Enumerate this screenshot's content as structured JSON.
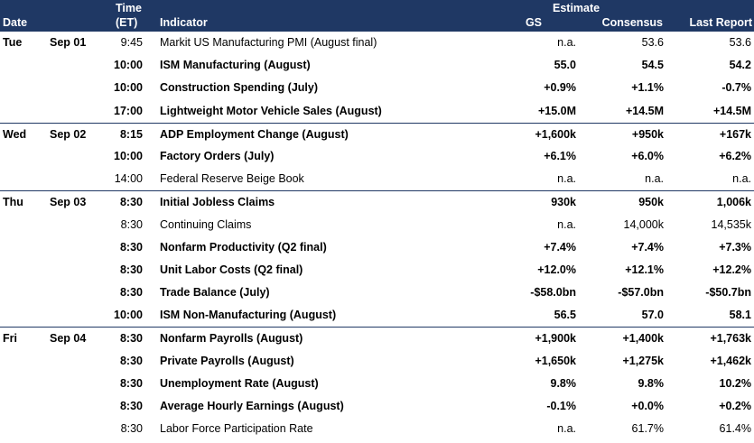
{
  "header": {
    "date": "Date",
    "time_line1": "Time",
    "time_line2": "(ET)",
    "indicator": "Indicator",
    "estimate": "Estimate",
    "gs": "GS",
    "consensus": "Consensus",
    "last_report": "Last Report"
  },
  "rows": [
    {
      "day": "Tue",
      "date": "Sep 01",
      "time": "9:45",
      "indicator": "Markit US Manufacturing PMI (August final)",
      "gs": "n.a.",
      "consensus": "53.6",
      "last": "53.6",
      "bold": false
    },
    {
      "day": "",
      "date": "",
      "time": "10:00",
      "indicator": "ISM Manufacturing (August)",
      "gs": "55.0",
      "consensus": "54.5",
      "last": "54.2",
      "bold": true
    },
    {
      "day": "",
      "date": "",
      "time": "10:00",
      "indicator": "Construction Spending (July)",
      "gs": "+0.9%",
      "consensus": "+1.1%",
      "last": "-0.7%",
      "bold": true
    },
    {
      "day": "",
      "date": "",
      "time": "17:00",
      "indicator": "Lightweight Motor Vehicle Sales (August)",
      "gs": "+15.0M",
      "consensus": "+14.5M",
      "last": "+14.5M",
      "bold": true
    },
    {
      "day": "Wed",
      "date": "Sep 02",
      "time": "8:15",
      "indicator": "ADP Employment Change (August)",
      "gs": "+1,600k",
      "consensus": "+950k",
      "last": "+167k",
      "bold": true
    },
    {
      "day": "",
      "date": "",
      "time": "10:00",
      "indicator": "Factory Orders (July)",
      "gs": "+6.1%",
      "consensus": "+6.0%",
      "last": "+6.2%",
      "bold": true
    },
    {
      "day": "",
      "date": "",
      "time": "14:00",
      "indicator": "Federal Reserve Beige Book",
      "gs": "n.a.",
      "consensus": "n.a.",
      "last": "n.a.",
      "bold": false
    },
    {
      "day": "Thu",
      "date": "Sep 03",
      "time": "8:30",
      "indicator": "Initial Jobless Claims",
      "gs": "930k",
      "consensus": "950k",
      "last": "1,006k",
      "bold": true
    },
    {
      "day": "",
      "date": "",
      "time": "8:30",
      "indicator": "Continuing Claims",
      "gs": "n.a.",
      "consensus": "14,000k",
      "last": "14,535k",
      "bold": false
    },
    {
      "day": "",
      "date": "",
      "time": "8:30",
      "indicator": "Nonfarm Productivity (Q2 final)",
      "gs": "+7.4%",
      "consensus": "+7.4%",
      "last": "+7.3%",
      "bold": true
    },
    {
      "day": "",
      "date": "",
      "time": "8:30",
      "indicator": "Unit Labor Costs (Q2 final)",
      "gs": "+12.0%",
      "consensus": "+12.1%",
      "last": "+12.2%",
      "bold": true
    },
    {
      "day": "",
      "date": "",
      "time": "8:30",
      "indicator": "Trade Balance (July)",
      "gs": "-$58.0bn",
      "consensus": "-$57.0bn",
      "last": "-$50.7bn",
      "bold": true
    },
    {
      "day": "",
      "date": "",
      "time": "10:00",
      "indicator": "ISM Non-Manufacturing (August)",
      "gs": "56.5",
      "consensus": "57.0",
      "last": "58.1",
      "bold": true
    },
    {
      "day": "Fri",
      "date": "Sep 04",
      "time": "8:30",
      "indicator": "Nonfarm Payrolls (August)",
      "gs": "+1,900k",
      "consensus": "+1,400k",
      "last": "+1,763k",
      "bold": true
    },
    {
      "day": "",
      "date": "",
      "time": "8:30",
      "indicator": "Private Payrolls (August)",
      "gs": "+1,650k",
      "consensus": "+1,275k",
      "last": "+1,462k",
      "bold": true
    },
    {
      "day": "",
      "date": "",
      "time": "8:30",
      "indicator": "Unemployment Rate (August)",
      "gs": "9.8%",
      "consensus": "9.8%",
      "last": "10.2%",
      "bold": true
    },
    {
      "day": "",
      "date": "",
      "time": "8:30",
      "indicator": "Average Hourly Earnings (August)",
      "gs": "-0.1%",
      "consensus": "+0.0%",
      "last": "+0.2%",
      "bold": true
    },
    {
      "day": "",
      "date": "",
      "time": "8:30",
      "indicator": "Labor Force Participation Rate",
      "gs": "n.a.",
      "consensus": "61.7%",
      "last": "61.4%",
      "bold": false
    }
  ]
}
